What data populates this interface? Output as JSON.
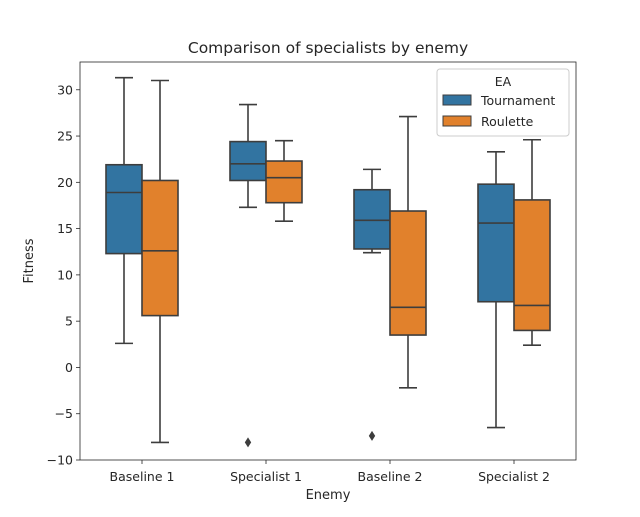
{
  "chart_data": {
    "type": "box",
    "title": "Comparison of specialists by enemy",
    "xlabel": "Enemy",
    "ylabel": "Fitness",
    "categories": [
      "Baseline 1",
      "Specialist 1",
      "Baseline 2",
      "Specialist 2"
    ],
    "ylim": [
      -10,
      33
    ],
    "yticks": [
      -10,
      -5,
      0,
      5,
      10,
      15,
      20,
      25,
      30
    ],
    "grid": false,
    "legend": {
      "title": "EA",
      "position": "top-right"
    },
    "series": [
      {
        "name": "Tournament",
        "color": "#3274a1",
        "boxes": [
          {
            "whisker_low": 2.6,
            "q1": 12.3,
            "median": 18.9,
            "q3": 21.9,
            "whisker_high": 31.3,
            "outliers": []
          },
          {
            "whisker_low": 17.3,
            "q1": 20.2,
            "median": 22.0,
            "q3": 24.4,
            "whisker_high": 28.4,
            "outliers": [
              -8.1
            ]
          },
          {
            "whisker_low": 12.4,
            "q1": 12.8,
            "median": 15.9,
            "q3": 19.2,
            "whisker_high": 21.4,
            "outliers": [
              -7.4
            ]
          },
          {
            "whisker_low": -6.5,
            "q1": 7.1,
            "median": 15.6,
            "q3": 19.8,
            "whisker_high": 23.3,
            "outliers": []
          }
        ]
      },
      {
        "name": "Roulette",
        "color": "#e1812c",
        "boxes": [
          {
            "whisker_low": -8.1,
            "q1": 5.6,
            "median": 12.6,
            "q3": 20.2,
            "whisker_high": 31.0,
            "outliers": []
          },
          {
            "whisker_low": 15.8,
            "q1": 17.8,
            "median": 20.5,
            "q3": 22.3,
            "whisker_high": 24.5,
            "outliers": []
          },
          {
            "whisker_low": -2.2,
            "q1": 3.5,
            "median": 6.5,
            "q3": 16.9,
            "whisker_high": 27.1,
            "outliers": []
          },
          {
            "whisker_low": 2.4,
            "q1": 4.0,
            "median": 6.7,
            "q3": 18.1,
            "whisker_high": 24.6,
            "outliers": []
          }
        ]
      }
    ]
  }
}
